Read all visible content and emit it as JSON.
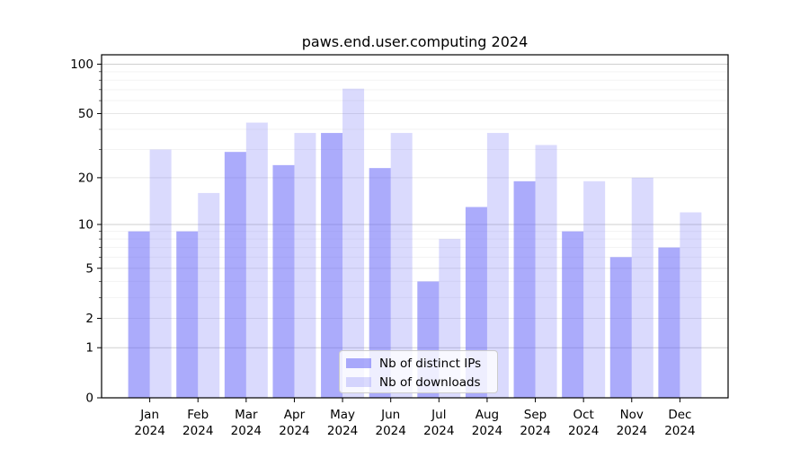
{
  "chart_data": {
    "type": "bar",
    "title": "paws.end.user.computing 2024",
    "year_label": "2024",
    "categories": [
      "Jan",
      "Feb",
      "Mar",
      "Apr",
      "May",
      "Jun",
      "Jul",
      "Aug",
      "Sep",
      "Oct",
      "Nov",
      "Dec"
    ],
    "series": [
      {
        "name": "Nb of distinct IPs",
        "color": "#6666f8",
        "alpha": 0.55,
        "values": [
          9,
          9,
          29,
          24,
          38,
          23,
          4,
          13,
          19,
          9,
          6,
          7
        ]
      },
      {
        "name": "Nb of downloads",
        "color": "#6666f8",
        "alpha": 0.24,
        "values": [
          30,
          16,
          44,
          38,
          71,
          38,
          8,
          38,
          32,
          19,
          20,
          12
        ]
      }
    ],
    "xlabel": "",
    "ylabel": "",
    "yscale": "log1p",
    "ylim": [
      0,
      114
    ],
    "yticks_major": [
      0,
      1,
      2,
      5,
      10,
      20,
      50,
      100
    ],
    "yticks_minor": [
      3,
      4,
      6,
      7,
      8,
      9,
      30,
      40,
      60,
      70,
      80,
      90
    ],
    "grid": true,
    "grid_color_decade": "#cfcfcf",
    "grid_color_major": "#e6e6e6",
    "grid_color_minor": "#f3f3f3",
    "axis_color": "#000000",
    "legend_position": "lower center"
  }
}
